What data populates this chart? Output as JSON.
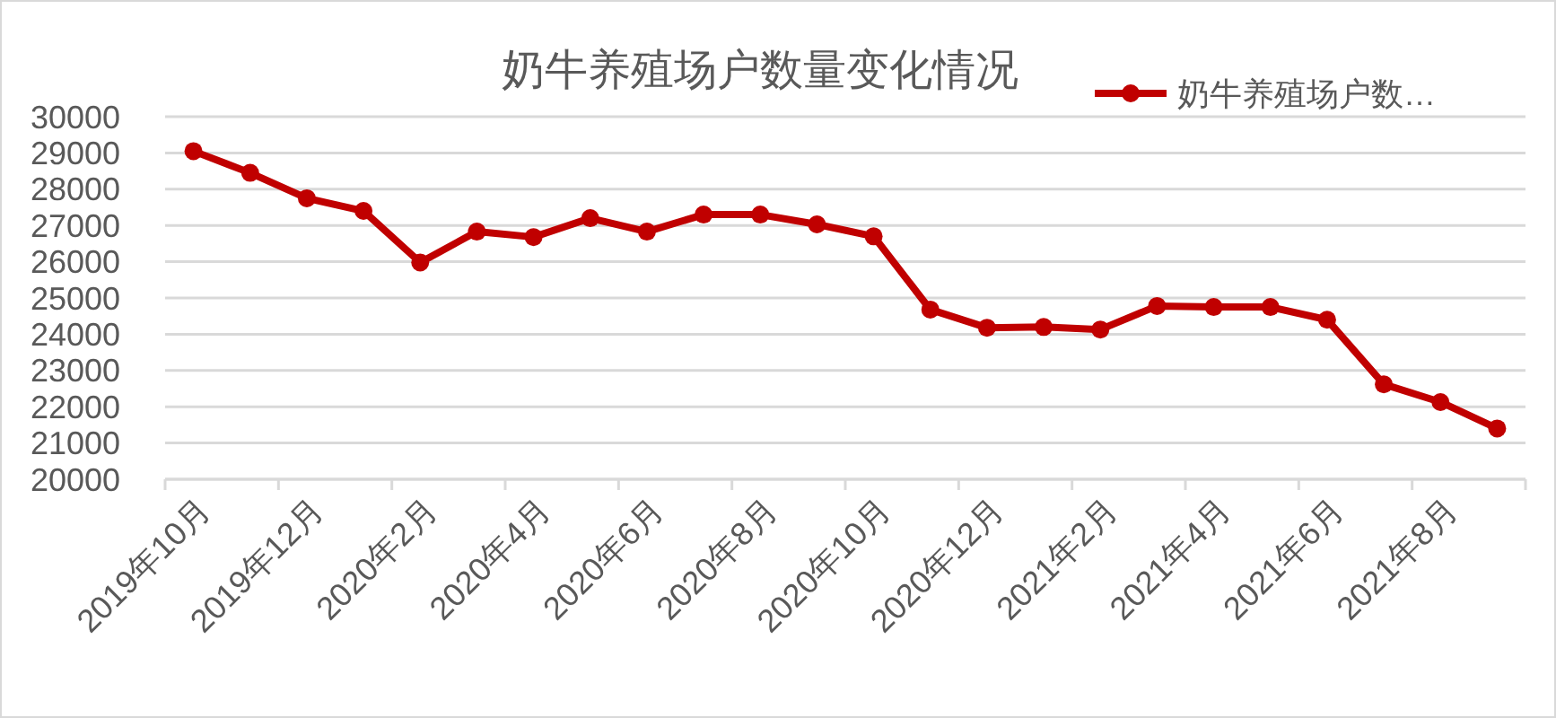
{
  "chart_data": {
    "type": "line",
    "title": "奶牛养殖场户数量变化情况",
    "categories": [
      "2019年10月",
      null,
      "2019年12月",
      null,
      "2020年2月",
      null,
      "2020年4月",
      null,
      "2020年6月",
      null,
      "2020年8月",
      null,
      "2020年10月",
      null,
      "2020年12月",
      null,
      "2021年2月",
      null,
      "2021年4月",
      null,
      "2021年6月",
      null,
      "2021年8月",
      null
    ],
    "series": [
      {
        "name": "奶牛养殖场户数…",
        "color": "#c00000",
        "values": [
          29050,
          28450,
          27750,
          27400,
          25980,
          26830,
          26680,
          27200,
          26830,
          27300,
          27300,
          27030,
          26700,
          24680,
          24180,
          24200,
          24130,
          24780,
          24750,
          24750,
          24400,
          22620,
          22130,
          21400
        ]
      }
    ],
    "ylim": [
      20000,
      30000
    ],
    "yticks": [
      20000,
      21000,
      22000,
      23000,
      24000,
      25000,
      26000,
      27000,
      28000,
      29000,
      30000
    ],
    "grid": "y",
    "legend": "top right",
    "marker": "circle",
    "line_style": "solid"
  }
}
